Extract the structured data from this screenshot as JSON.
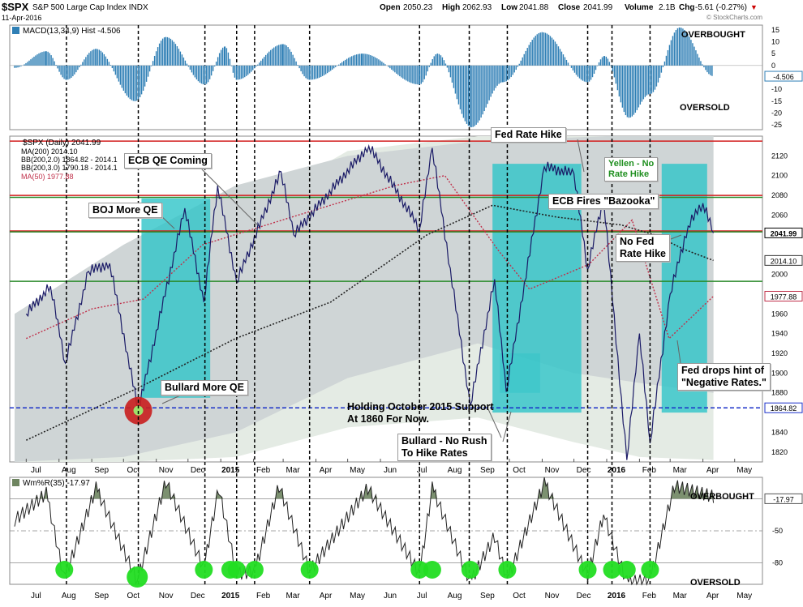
{
  "header": {
    "symbol": "$SPX",
    "name": "S&P 500 Large Cap Index INDX",
    "date": "11-Apr-2016",
    "open_label": "Open",
    "open": "2050.23",
    "high_label": "High",
    "high": "2062.93",
    "low_label": "Low",
    "low": "2041.88",
    "close_label": "Close",
    "close": "2041.99",
    "volume_label": "Volume",
    "volume": "2.1B",
    "chg_label": "Chg",
    "chg": "-5.61 (-0.27%)",
    "chg_arrow": "▼",
    "watermark": "© StockCharts.com"
  },
  "colors": {
    "price": "#1a1a66",
    "price_up": "#8b1a3c",
    "macd_hist": "#2f7fb5",
    "ma50": "#c0304a",
    "ma200": "#222222",
    "band_outer": "#e4ebe4",
    "band_inner": "#cfd5d6",
    "highlight": "#2ec4c8",
    "resistance_red": "#d21e1e",
    "support_green": "#2a8a2a",
    "support_blue": "#1a2fc8",
    "willr_fill": "#6e8560",
    "oversold_dot": "#22dd22"
  },
  "months": [
    "Jul",
    "Aug",
    "Sep",
    "Oct",
    "Nov",
    "Dec",
    "2015",
    "Feb",
    "Mar",
    "Apr",
    "May",
    "Jun",
    "Jul",
    "Aug",
    "Sep",
    "Oct",
    "Nov",
    "Dec",
    "2016",
    "Feb",
    "Mar",
    "Apr",
    "May"
  ],
  "macd_panel": {
    "legend": "MACD(13,34,9) Hist -4.506",
    "overbought": "OVERBOUGHT",
    "oversold": "OVERSOLD",
    "axis_ticks": [
      "15",
      "10",
      "5",
      "0",
      "-5",
      "-10",
      "-15",
      "-20",
      "-25"
    ],
    "last_value": "-4.506"
  },
  "price_panel": {
    "legend": {
      "title": "$SPX (Daily) 2041.99",
      "ma200": "MA(200) 2014.10",
      "bb1": "BB(200,2.0) 1864.82 - 2014.1",
      "bb2": "BB(200,3.0) 1790.18 - 2014.1",
      "ma50": "MA(50) 1977.88"
    },
    "axis_ticks": [
      "2120",
      "2100",
      "2080",
      "2060",
      "2040",
      "2020",
      "2000",
      "1980",
      "1960",
      "1940",
      "1920",
      "1900",
      "1880",
      "1860",
      "1840",
      "1820"
    ],
    "tags": {
      "close": "2041.99",
      "ma200": "2014.10",
      "ma50": "1977.88",
      "support": "1864.82"
    }
  },
  "annotations": {
    "boj": "BOJ More QE",
    "ecb_coming": "ECB QE Coming",
    "bullard_qe": "Bullard More QE",
    "holding": "Holding October 2015 Support\nAt 1860 For Now.",
    "bullard_rush": "Bullard - No Rush\nTo Hike Rates",
    "fed_hike": "Fed Rate Hike",
    "ecb_bazooka": "ECB Fires \"Bazooka\"",
    "yellen": "Yellen - No\nRate Hike",
    "no_fed_hike": "No Fed\nRate Hike",
    "negative_rates": "Fed drops hint of\n\"Negative Rates.\""
  },
  "willr_panel": {
    "legend": "Wm%R(35) -17.97",
    "overbought": "OVERBOUGHT",
    "oversold": "OVERSOLD",
    "axis_ticks": [
      "-50",
      "-80"
    ],
    "last_value": "-17.97"
  },
  "chart_data": {
    "type": "line",
    "title": "$SPX S&P 500 Large Cap Index INDX",
    "x_axis": "date (Jul 2014 – May 2016, daily)",
    "ylim": [
      1810,
      2140
    ],
    "series": [
      {
        "name": "$SPX (Daily)",
        "x": [
          "2014-07-01",
          "2014-07-24",
          "2014-08-07",
          "2014-08-29",
          "2014-09-18",
          "2014-10-15",
          "2014-11-28",
          "2014-12-16",
          "2014-12-29",
          "2015-01-16",
          "2015-02-27",
          "2015-03-11",
          "2015-05-21",
          "2015-07-08",
          "2015-07-20",
          "2015-08-25",
          "2015-09-17",
          "2015-09-28",
          "2015-11-03",
          "2015-12-01",
          "2015-12-14",
          "2015-12-29",
          "2016-01-20",
          "2016-02-01",
          "2016-02-11",
          "2016-03-01",
          "2016-03-18",
          "2016-04-01",
          "2016-04-11"
        ],
        "values": [
          1960,
          1988,
          1910,
          2003,
          2011,
          1862,
          2067,
          1972,
          2090,
          1992,
          2104,
          2040,
          2130,
          2046,
          2128,
          1867,
          1995,
          1881,
          2109,
          2102,
          2005,
          2078,
          1812,
          1940,
          1829,
          1980,
          2049,
          2072,
          2041.99
        ]
      },
      {
        "name": "MA(200)",
        "x": [
          "2014-07-01",
          "2014-10-15",
          "2015-01-15",
          "2015-04-15",
          "2015-07-15",
          "2015-09-15",
          "2015-11-15",
          "2016-01-15",
          "2016-02-15",
          "2016-03-15",
          "2016-04-11"
        ],
        "values": [
          1832,
          1885,
          1935,
          1972,
          2040,
          2070,
          2058,
          2050,
          2040,
          2025,
          2014.1
        ]
      },
      {
        "name": "MA(50)",
        "x": [
          "2014-07-01",
          "2014-09-01",
          "2014-10-20",
          "2014-12-15",
          "2015-03-15",
          "2015-06-15",
          "2015-08-01",
          "2015-09-20",
          "2015-10-20",
          "2015-12-15",
          "2016-01-25",
          "2016-02-29",
          "2016-04-11"
        ],
        "values": [
          1935,
          1965,
          1975,
          2030,
          2060,
          2090,
          2100,
          2025,
          1985,
          2010,
          2055,
          1935,
          1977.88
        ]
      }
    ],
    "levels": [
      {
        "name": "Resistance",
        "value": 2135,
        "style": "red"
      },
      {
        "name": "Resistance",
        "value": 2080,
        "style": "red"
      },
      {
        "name": "Support",
        "value": 2044,
        "style": "red"
      },
      {
        "name": "Support",
        "value": 2078,
        "style": "green"
      },
      {
        "name": "Support",
        "value": 2043,
        "style": "green"
      },
      {
        "name": "Support",
        "value": 1993,
        "style": "green"
      },
      {
        "name": "Support",
        "value": 1864.82,
        "style": "blue-dashed"
      }
    ],
    "macd_hist": {
      "name": "MACD(13,34,9) Hist",
      "ylim": [
        -27,
        17
      ],
      "last": -4.506
    },
    "williams_r": {
      "name": "Wm%R(35)",
      "ylim": [
        -100,
        0
      ],
      "levels": [
        -20,
        -50,
        -80
      ],
      "last": -17.97
    }
  }
}
